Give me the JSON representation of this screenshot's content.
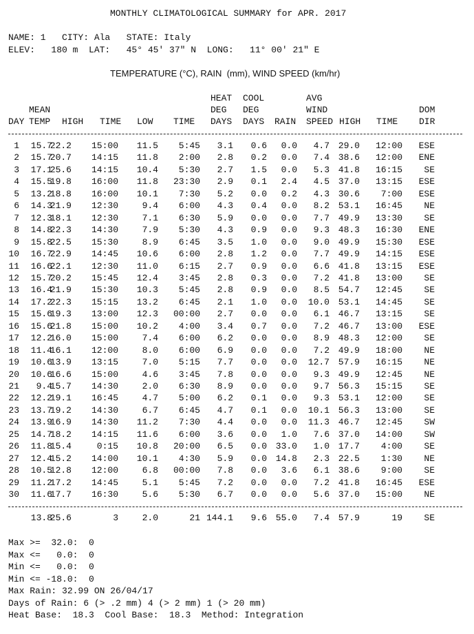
{
  "header": {
    "title": "MONTHLY CLIMATOLOGICAL SUMMARY for APR. 2017",
    "station": "NAME: 1   CITY: Ala   STATE: Italy",
    "location": "ELEV:   180 m  LAT:   45° 45' 37\" N  LONG:   11° 00' 21\" E",
    "units": "TEMPERATURE (°C), RAIN  (mm), WIND SPEED (km/hr)"
  },
  "table": {
    "columns": [
      [
        "DAY"
      ],
      [
        "MEAN",
        "TEMP"
      ],
      [
        "HIGH"
      ],
      [
        "TIME"
      ],
      [
        "LOW"
      ],
      [
        "TIME"
      ],
      [
        "HEAT",
        "DEG",
        "DAYS"
      ],
      [
        "COOL",
        "DEG",
        "DAYS"
      ],
      [
        "RAIN"
      ],
      [
        "AVG",
        "WIND",
        "SPEED"
      ],
      [
        "HIGH"
      ],
      [
        "TIME"
      ],
      [
        "DOM",
        "DIR"
      ]
    ],
    "rows": [
      [
        "1",
        "15.7",
        "22.2",
        "15:00",
        "11.5",
        "5:45",
        "3.1",
        "0.6",
        "0.0",
        "4.7",
        "29.0",
        "12:00",
        "ESE"
      ],
      [
        "2",
        "15.7",
        "20.7",
        "14:15",
        "11.8",
        "2:00",
        "2.8",
        "0.2",
        "0.0",
        "7.4",
        "38.6",
        "12:00",
        "ENE"
      ],
      [
        "3",
        "17.1",
        "25.6",
        "14:15",
        "10.4",
        "5:30",
        "2.7",
        "1.5",
        "0.0",
        "5.3",
        "41.8",
        "16:15",
        "SE"
      ],
      [
        "4",
        "15.5",
        "19.8",
        "16:00",
        "11.8",
        "23:30",
        "2.9",
        "0.1",
        "2.4",
        "4.5",
        "37.0",
        "13:15",
        "ESE"
      ],
      [
        "5",
        "13.2",
        "18.8",
        "16:00",
        "10.1",
        "7:30",
        "5.2",
        "0.0",
        "0.2",
        "4.3",
        "30.6",
        "7:00",
        "ESE"
      ],
      [
        "6",
        "14.3",
        "21.9",
        "12:30",
        "9.4",
        "6:00",
        "4.3",
        "0.4",
        "0.0",
        "8.2",
        "53.1",
        "16:45",
        "NE"
      ],
      [
        "7",
        "12.3",
        "18.1",
        "12:30",
        "7.1",
        "6:30",
        "5.9",
        "0.0",
        "0.0",
        "7.7",
        "49.9",
        "13:30",
        "SE"
      ],
      [
        "8",
        "14.8",
        "22.3",
        "14:30",
        "7.9",
        "5:30",
        "4.3",
        "0.9",
        "0.0",
        "9.3",
        "48.3",
        "16:30",
        "ENE"
      ],
      [
        "9",
        "15.8",
        "22.5",
        "15:30",
        "8.9",
        "6:45",
        "3.5",
        "1.0",
        "0.0",
        "9.0",
        "49.9",
        "15:30",
        "ESE"
      ],
      [
        "10",
        "16.7",
        "22.9",
        "14:45",
        "10.6",
        "6:00",
        "2.8",
        "1.2",
        "0.0",
        "7.7",
        "49.9",
        "14:15",
        "ESE"
      ],
      [
        "11",
        "16.6",
        "22.1",
        "12:30",
        "11.0",
        "6:15",
        "2.7",
        "0.9",
        "0.0",
        "6.6",
        "41.8",
        "13:15",
        "ESE"
      ],
      [
        "12",
        "15.7",
        "20.2",
        "15:45",
        "12.4",
        "3:45",
        "2.8",
        "0.3",
        "0.0",
        "7.2",
        "41.8",
        "13:00",
        "SE"
      ],
      [
        "13",
        "16.4",
        "21.9",
        "15:30",
        "10.3",
        "5:45",
        "2.8",
        "0.9",
        "0.0",
        "8.5",
        "54.7",
        "12:45",
        "SE"
      ],
      [
        "14",
        "17.2",
        "22.3",
        "15:15",
        "13.2",
        "6:45",
        "2.1",
        "1.0",
        "0.0",
        "10.0",
        "53.1",
        "14:45",
        "SE"
      ],
      [
        "15",
        "15.6",
        "19.3",
        "13:00",
        "12.3",
        "00:00",
        "2.7",
        "0.0",
        "0.0",
        "6.1",
        "46.7",
        "13:15",
        "SE"
      ],
      [
        "16",
        "15.6",
        "21.8",
        "15:00",
        "10.2",
        "4:00",
        "3.4",
        "0.7",
        "0.0",
        "7.2",
        "46.7",
        "13:00",
        "ESE"
      ],
      [
        "17",
        "12.2",
        "16.0",
        "15:00",
        "7.4",
        "6:00",
        "6.2",
        "0.0",
        "0.0",
        "8.9",
        "48.3",
        "12:00",
        "SE"
      ],
      [
        "18",
        "11.4",
        "16.1",
        "12:00",
        "8.0",
        "6:00",
        "6.9",
        "0.0",
        "0.0",
        "7.2",
        "49.9",
        "18:00",
        "NE"
      ],
      [
        "19",
        "10.6",
        "13.9",
        "13:15",
        "7.0",
        "5:15",
        "7.7",
        "0.0",
        "0.0",
        "12.7",
        "57.9",
        "16:15",
        "NE"
      ],
      [
        "20",
        "10.6",
        "16.6",
        "15:00",
        "4.6",
        "3:45",
        "7.8",
        "0.0",
        "0.0",
        "9.3",
        "49.9",
        "12:45",
        "NE"
      ],
      [
        "21",
        "9.4",
        "15.7",
        "14:30",
        "2.0",
        "6:30",
        "8.9",
        "0.0",
        "0.0",
        "9.7",
        "56.3",
        "15:15",
        "SE"
      ],
      [
        "22",
        "12.2",
        "19.1",
        "16:45",
        "4.7",
        "5:00",
        "6.2",
        "0.1",
        "0.0",
        "9.3",
        "53.1",
        "12:00",
        "SE"
      ],
      [
        "23",
        "13.7",
        "19.2",
        "14:30",
        "6.7",
        "6:45",
        "4.7",
        "0.1",
        "0.0",
        "10.1",
        "56.3",
        "13:00",
        "SE"
      ],
      [
        "24",
        "13.9",
        "16.9",
        "14:30",
        "11.2",
        "7:30",
        "4.4",
        "0.0",
        "0.0",
        "11.3",
        "46.7",
        "12:45",
        "SW"
      ],
      [
        "25",
        "14.7",
        "18.2",
        "14:15",
        "11.6",
        "6:00",
        "3.6",
        "0.0",
        "1.0",
        "7.6",
        "37.0",
        "14:00",
        "SW"
      ],
      [
        "26",
        "11.8",
        "15.4",
        "0:15",
        "10.8",
        "20:00",
        "6.5",
        "0.0",
        "33.0",
        "1.0",
        "17.7",
        "4:00",
        "SE"
      ],
      [
        "27",
        "12.4",
        "15.2",
        "14:00",
        "10.1",
        "4:30",
        "5.9",
        "0.0",
        "14.8",
        "2.3",
        "22.5",
        "1:30",
        "NE"
      ],
      [
        "28",
        "10.5",
        "12.8",
        "12:00",
        "6.8",
        "00:00",
        "7.8",
        "0.0",
        "3.6",
        "6.1",
        "38.6",
        "9:00",
        "SE"
      ],
      [
        "29",
        "11.2",
        "17.2",
        "14:45",
        "5.1",
        "5:45",
        "7.2",
        "0.0",
        "0.0",
        "7.2",
        "41.8",
        "16:45",
        "ESE"
      ],
      [
        "30",
        "11.6",
        "17.7",
        "16:30",
        "5.6",
        "5:30",
        "6.7",
        "0.0",
        "0.0",
        "5.6",
        "37.0",
        "15:00",
        "NE"
      ]
    ],
    "summary": [
      "13.8",
      "25.6",
      "3",
      "2.0",
      "21",
      "144.1",
      "9.6",
      "55.0",
      "7.4",
      "57.9",
      "19",
      "SE"
    ]
  },
  "footer": [
    "Max >=  32.0:  0",
    "Max <=   0.0:  0",
    "Min <=   0.0:  0",
    "Min <= -18.0:  0",
    "Max Rain: 32.99 ON 26/04/17",
    "Days of Rain: 6 (> .2 mm) 4 (> 2 mm) 1 (> 20 mm)",
    "Heat Base:  18.3  Cool Base:  18.3  Method: Integration"
  ]
}
